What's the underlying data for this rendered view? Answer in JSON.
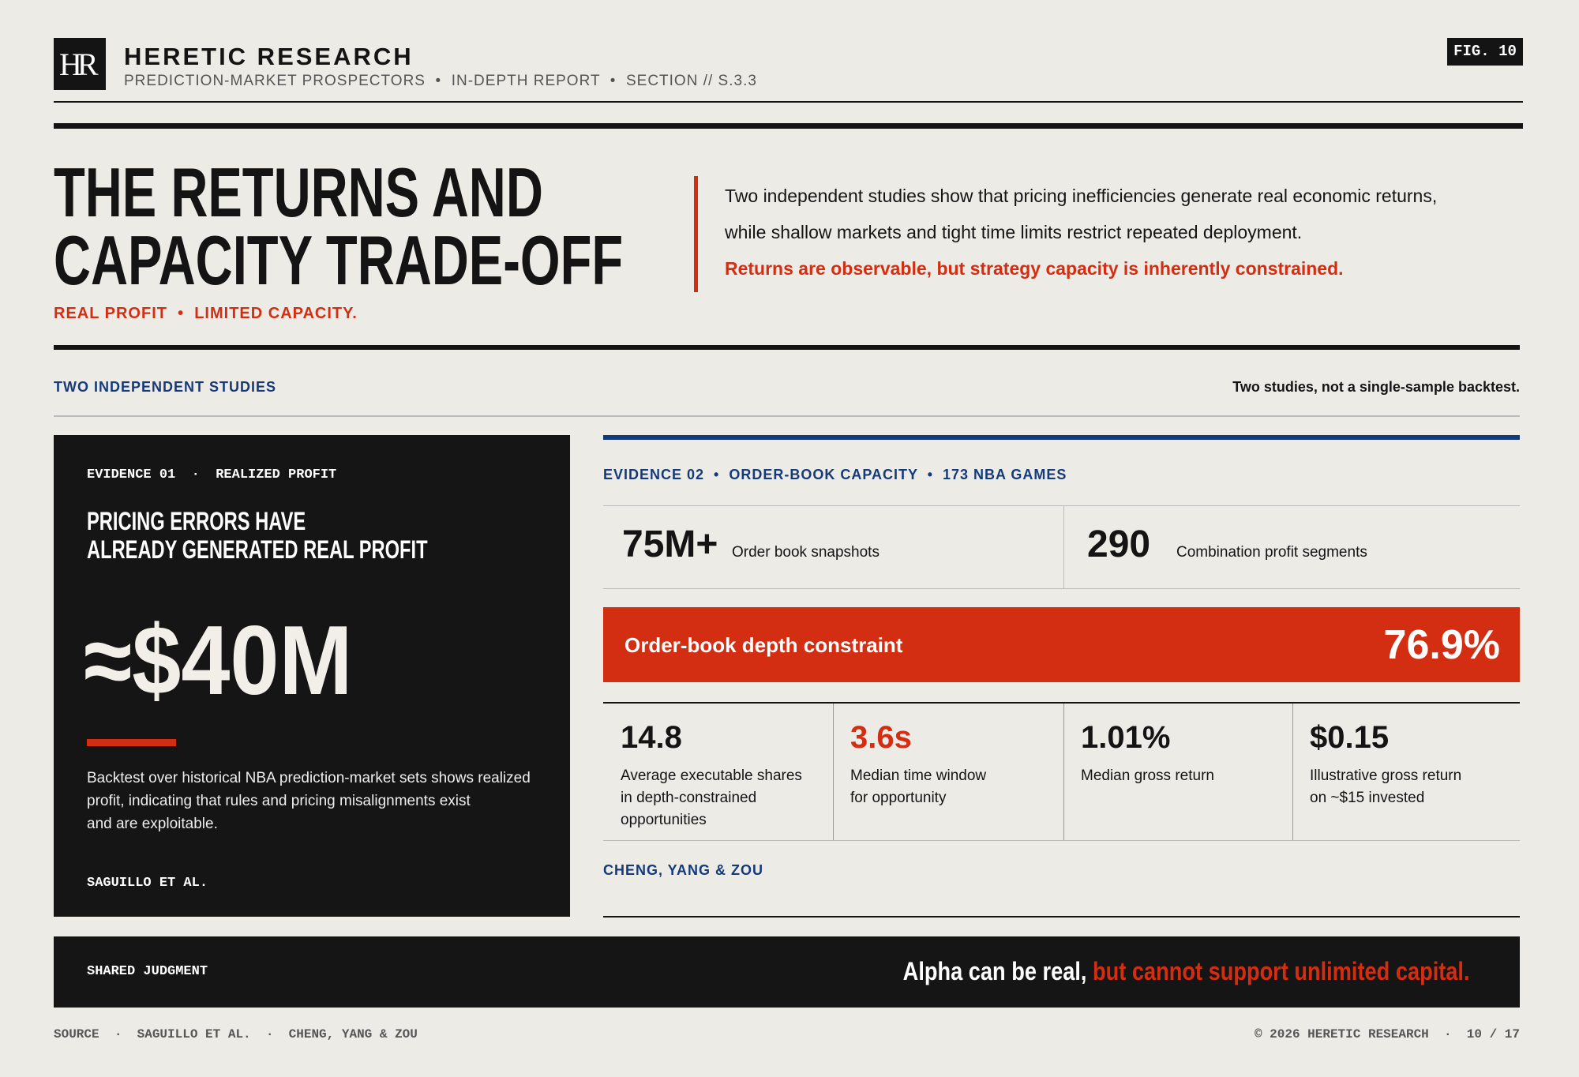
{
  "header": {
    "logo": "HR",
    "brand": "HERETIC RESEARCH",
    "subtitle": "PREDICTION-MARKET PROSPECTORS  •  IN-DEPTH REPORT  •  SECTION // S.3.3",
    "fig": "FIG. 10"
  },
  "hero": {
    "title": [
      "THE RETURNS AND",
      "CAPACITY TRADE-OFF"
    ],
    "tagline": "REAL PROFIT  •  LIMITED CAPACITY.",
    "summary": [
      "Two independent studies show that pricing inefficiencies generate real economic returns,",
      "while shallow markets and tight time limits restrict repeated deployment."
    ],
    "emphasis": "Returns are observable, but strategy capacity is inherently constrained."
  },
  "section": {
    "label": "TWO INDEPENDENT STUDIES",
    "note": "Two studies, not a single-sample backtest."
  },
  "evidence1": {
    "kicker": "EVIDENCE 01  ·  REALIZED PROFIT",
    "heading": [
      "PRICING ERRORS HAVE",
      "ALREADY GENERATED REAL PROFIT"
    ],
    "figure": "≈$40M",
    "body": [
      "Backtest over historical NBA prediction-market sets shows realized",
      "profit, indicating that rules and pricing misalignments exist",
      "and are exploitable."
    ],
    "source": "SAGUILLO ET AL."
  },
  "evidence2": {
    "kicker": "EVIDENCE 02  •  ORDER-BOOK CAPACITY  •  173 NBA GAMES",
    "stats": [
      {
        "value": "75M+",
        "label": "Order book snapshots"
      },
      {
        "value": "290",
        "label": "Combination profit segments"
      }
    ],
    "constraint": {
      "label": "Order-book depth constraint",
      "value": "76.9%"
    },
    "cells": [
      {
        "value": "14.8",
        "label": [
          "Average executable shares",
          "in depth-constrained",
          "opportunities"
        ]
      },
      {
        "value": "3.6s",
        "label": [
          "Median time window",
          "for opportunity"
        ]
      },
      {
        "value": "1.01%",
        "label": [
          "Median gross return"
        ]
      },
      {
        "value": "$0.15",
        "label": [
          "Illustrative gross return",
          "on ~$15 invested"
        ]
      }
    ],
    "source": "CHENG, YANG & ZOU"
  },
  "judgment": {
    "label": "SHARED JUDGMENT",
    "statement": "Alpha can be real, ",
    "statement_emphasis": "but cannot support unlimited capital."
  },
  "footer": {
    "source": "SOURCE  ·  SAGUILLO ET AL.  ·  CHENG, YANG & ZOU",
    "credit": "© 2026 HERETIC RESEARCH  ·  10 / 17"
  }
}
